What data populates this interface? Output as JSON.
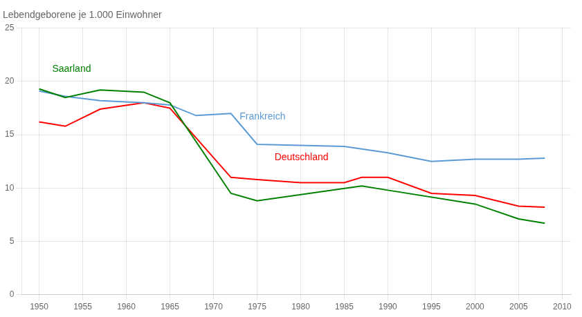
{
  "chart_data": {
    "type": "line",
    "title": "Lebendgeborene je 1.000 Einwohner",
    "series": [
      {
        "color": "#008000",
        "x": [
          1950,
          1953,
          1957,
          1962,
          1965,
          1972,
          1975,
          1987,
          1990,
          2000,
          2005,
          2008
        ],
        "values": [
          19.3,
          18.5,
          19.2,
          19.0,
          18.0,
          9.5,
          8.8,
          10.2,
          9.8,
          8.5,
          7.1,
          6.7
        ]
      },
      {
        "color": "#5b9bd5",
        "x": [
          1950,
          1953,
          1957,
          1962,
          1965,
          1968,
          1972,
          1975,
          1980,
          1985,
          1990,
          1995,
          2000,
          2005,
          2008
        ],
        "values": [
          19.1,
          18.6,
          18.2,
          18.0,
          17.8,
          16.8,
          17.0,
          14.1,
          14.0,
          13.9,
          13.3,
          12.5,
          12.7,
          12.7,
          12.8
        ]
      },
      {
        "color": "#ff0000",
        "x": [
          1950,
          1953,
          1957,
          1962,
          1965,
          1972,
          1975,
          1980,
          1985,
          1987,
          1990,
          1995,
          2000,
          2005,
          2008
        ],
        "values": [
          16.2,
          15.8,
          17.4,
          18.0,
          17.5,
          11.0,
          10.8,
          10.5,
          10.5,
          11.0,
          11.0,
          9.5,
          9.3,
          8.3,
          8.2
        ]
      }
    ],
    "annotations": [
      {
        "text": "Saarland",
        "x": 1951.5,
        "y": 20.7,
        "color": "#008000"
      },
      {
        "text": "Frankreich",
        "x": 1973,
        "y": 16.2,
        "color": "#5b9bd5"
      },
      {
        "text": "Deutschland",
        "x": 1977,
        "y": 12.4,
        "color": "#ff0000"
      }
    ],
    "xlim": [
      1948,
      2011
    ],
    "xticks": [
      1950,
      1955,
      1960,
      1965,
      1970,
      1975,
      1980,
      1985,
      1990,
      1995,
      2000,
      2005,
      2010
    ],
    "ylim": [
      0,
      25
    ],
    "yticks": [
      0,
      5,
      10,
      15,
      20,
      25
    ],
    "grid": true
  }
}
